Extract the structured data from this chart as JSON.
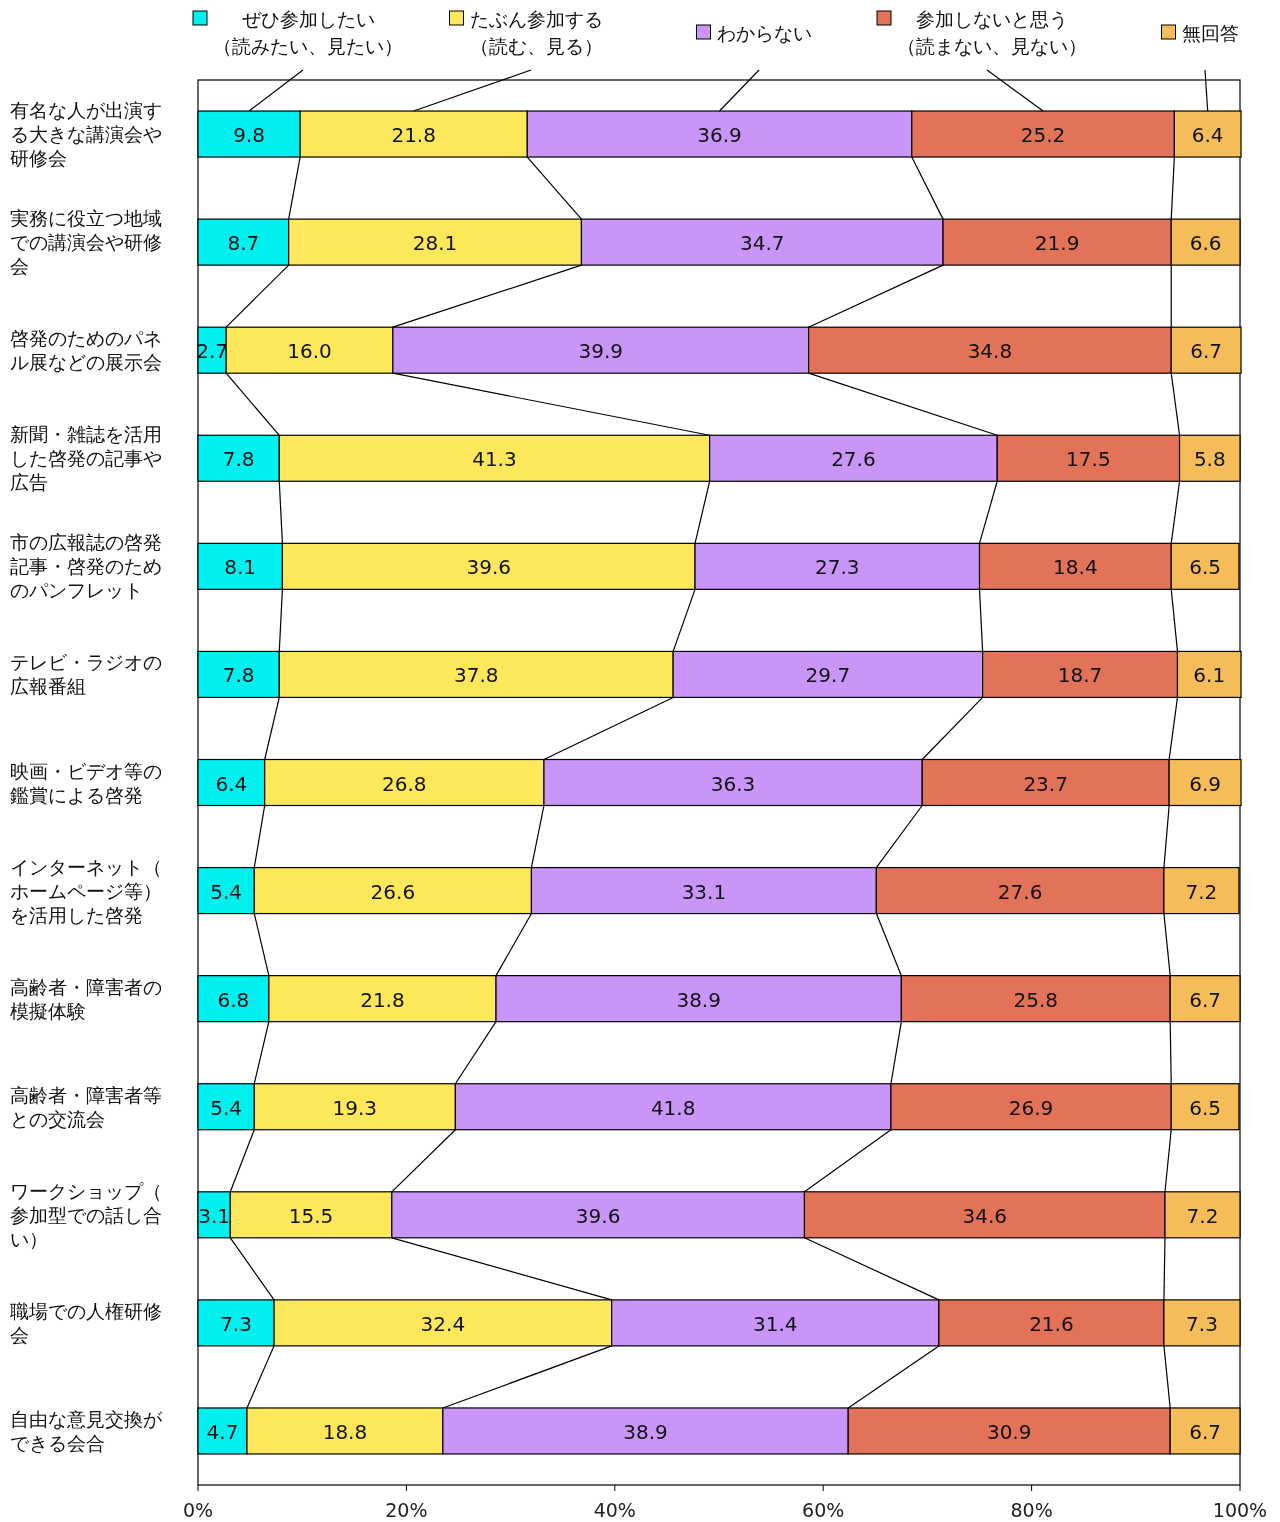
{
  "chart_data": {
    "type": "bar",
    "orientation": "horizontal",
    "stacked": true,
    "data_labels": true,
    "legend": "top",
    "grid": false,
    "categories": [
      "有名な人が出演する大きな講演会や研修会",
      "実務に役立つ地域での講演会や研修会",
      "啓発のためのパネル展などの展示会",
      "新聞・雑誌を活用した啓発の記事や広告",
      "市の広報誌の啓発記事・啓発のためのパンフレット",
      "テレビ・ラジオの広報番組",
      "映画・ビデオ等の鑑賞による啓発",
      "インターネット（ホームページ等）を活用した啓発",
      "高齢者・障害者の模擬体験",
      "高齢者・障害者等との交流会",
      "ワークショップ（参加型での話し合い）",
      "職場での人権研修会",
      "自由な意見交換ができる会合"
    ],
    "series": [
      {
        "name": "ぜひ参加したい（読みたい、見たい）",
        "color": "#00f0f0",
        "values": [
          9.8,
          8.7,
          2.7,
          7.8,
          8.1,
          7.8,
          6.4,
          5.4,
          6.8,
          5.4,
          3.1,
          7.3,
          4.7
        ]
      },
      {
        "name": "たぶん参加する（読む、見る）",
        "color": "#fde75a",
        "values": [
          21.8,
          28.1,
          16.0,
          41.3,
          39.6,
          37.8,
          26.8,
          26.6,
          21.8,
          19.3,
          15.5,
          32.4,
          18.8
        ],
        "value_labels": [
          "21.8",
          "28.1",
          "16.0",
          "41.3",
          "39.6",
          "37.8",
          "26.8",
          "26.6",
          "21.8",
          "19.3",
          "15.5",
          "32.4",
          "18.8"
        ]
      },
      {
        "name": "わからない",
        "color": "#c995f8",
        "values": [
          36.9,
          34.7,
          39.9,
          27.6,
          27.3,
          29.7,
          36.3,
          33.1,
          38.9,
          41.8,
          39.6,
          31.4,
          38.9
        ]
      },
      {
        "name": "参加しないと思う（読まない、見ない）",
        "color": "#e27358",
        "values": [
          25.2,
          21.9,
          34.8,
          17.5,
          18.4,
          18.7,
          23.7,
          27.6,
          25.8,
          26.9,
          34.6,
          21.6,
          30.9
        ]
      },
      {
        "name": "無回答",
        "color": "#f5bd5a",
        "values": [
          6.4,
          6.6,
          6.7,
          5.8,
          6.5,
          6.1,
          6.9,
          7.2,
          6.7,
          6.5,
          7.2,
          7.3,
          6.7
        ]
      }
    ],
    "xlim": [
      0,
      100
    ],
    "xticks": [
      {
        "value": 0,
        "label": "0%"
      },
      {
        "value": 20,
        "label": "20%"
      },
      {
        "value": 40,
        "label": "40%"
      },
      {
        "value": 60,
        "label": "60%"
      },
      {
        "value": 80,
        "label": "80%"
      },
      {
        "value": 100,
        "label": "100%"
      }
    ]
  }
}
